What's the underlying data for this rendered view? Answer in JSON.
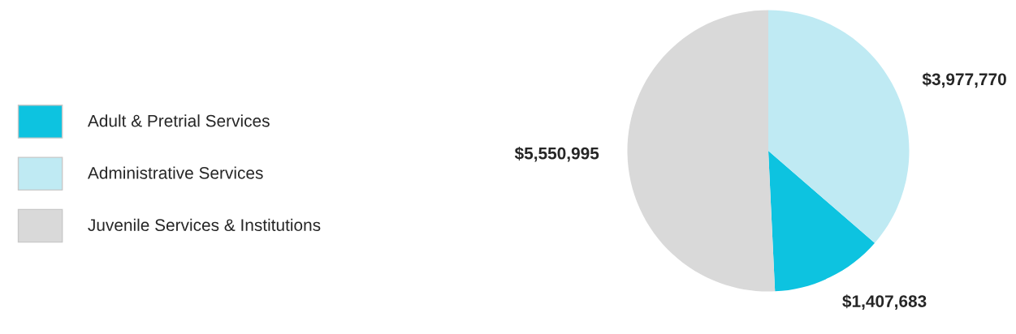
{
  "chart_data": {
    "type": "pie",
    "categories": [
      "Adult & Pretrial Services",
      "Administrative Services",
      "Juvenile Services & Institutions"
    ],
    "values": [
      1407683,
      3977770,
      5550995
    ],
    "colors": [
      "#0dc3e0",
      "#bfeaf3",
      "#d9d9d9"
    ],
    "value_labels": [
      "$1,407,683",
      "$3,977,770",
      "$5,550,995"
    ],
    "legend": "left"
  }
}
